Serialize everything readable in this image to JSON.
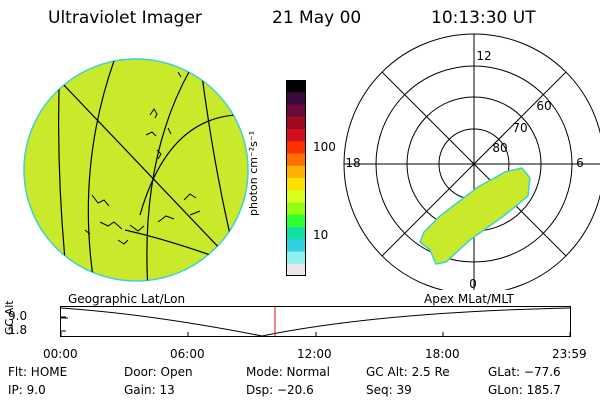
{
  "header": {
    "instrument": "Ultraviolet Imager",
    "date": "21 May 00",
    "time": "10:13:30 UT"
  },
  "colorbar": {
    "label": "photon cm⁻²s⁻¹",
    "ticks": [
      "100",
      "10"
    ],
    "colors": [
      "#000000",
      "#3a0a3a",
      "#6a0a3a",
      "#a00a20",
      "#d01020",
      "#ff3000",
      "#ff7000",
      "#ffb000",
      "#ffe000",
      "#d8ff20",
      "#90ff10",
      "#30ff30",
      "#10e0a0",
      "#30d0e0",
      "#90f0f0",
      "#e8e8e8"
    ]
  },
  "polar": {
    "mlt_labels": {
      "top": "12",
      "left": "18",
      "right": "6",
      "bottom": "0"
    },
    "lat_labels": [
      "80",
      "70",
      "60"
    ]
  },
  "timeline": {
    "left_title": "Geographic Lat/Lon",
    "right_title": "Apex MLat/MLT",
    "y_axis_label": "GC Alt",
    "y_ticks": [
      "9.0",
      "1.8"
    ],
    "x_ticks": [
      "00:00",
      "06:00",
      "12:00",
      "18:00",
      "23:59"
    ],
    "marker_color": "#d01010"
  },
  "info": {
    "flt": "Flt: HOME",
    "ip": "IP:  9.0",
    "door": "Door: Open",
    "gain": "Gain: 13",
    "mode": "Mode: Normal",
    "dsp": "Dsp:  −20.6",
    "gc_alt": "GC Alt: 2.5 Re",
    "seq": "Seq: 39",
    "glat": "GLat: −77.6",
    "glon": "GLon: 185.7"
  },
  "image_fill_color": "#c8ea2a"
}
